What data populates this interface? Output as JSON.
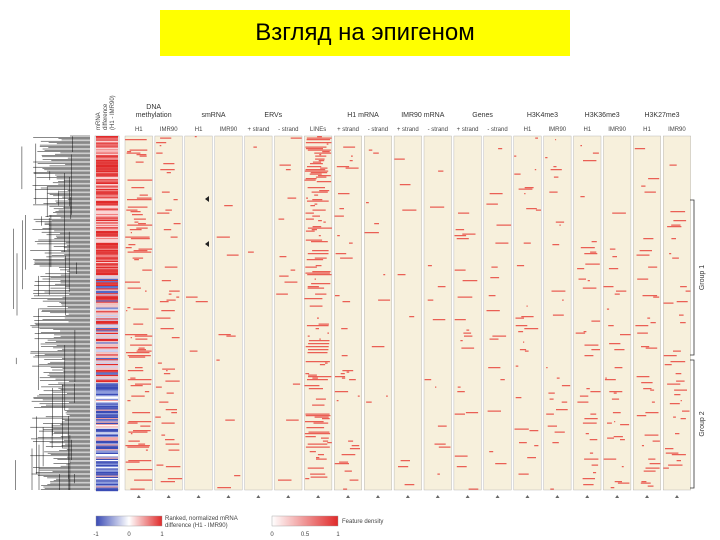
{
  "title": "Взгляд на эпигеном",
  "mrna_diff_label": "mRNA\ndifference\n(H1 - IMR90)",
  "track_groups": [
    {
      "label": "DNA\nmethylation",
      "subs": [
        "H1",
        "IMR90"
      ]
    },
    {
      "label": "smRNA",
      "subs": [
        "H1",
        "IMR90"
      ]
    },
    {
      "label": "ERVs",
      "subs": [
        "+ strand",
        "- strand"
      ]
    },
    {
      "label": "",
      "subs": [
        "LINEs"
      ]
    },
    {
      "label": "H1 mRNA",
      "subs": [
        "+ strand",
        "- strand"
      ]
    },
    {
      "label": "IMR90 mRNA",
      "subs": [
        "+ strand",
        "- strand"
      ]
    },
    {
      "label": "Genes",
      "subs": [
        "+ strand",
        "- strand"
      ]
    },
    {
      "label": "H3K4me3",
      "subs": [
        "H1",
        "IMR90"
      ]
    },
    {
      "label": "H3K36me3",
      "subs": [
        "H1",
        "IMR90"
      ]
    },
    {
      "label": "H3K27me3",
      "subs": [
        "H1",
        "IMR90"
      ]
    }
  ],
  "group_labels": [
    "Group 1",
    "Group 2"
  ],
  "legend": {
    "mrna_label": "Ranked, normalized mRNA\ndifference (H1 - IMR90)",
    "mrna_ticks": [
      "-1",
      "0",
      "1"
    ],
    "density_label": "Feature density",
    "density_ticks": [
      "0",
      "0.5",
      "1"
    ]
  },
  "colors": {
    "title_bg": "#ffff00",
    "track_bg": "#f7f0dc",
    "feature": "#e8453c",
    "low": "#3a4bb5"
  },
  "column_densities": [
    0.35,
    0.2,
    0.02,
    0.03,
    0.02,
    0.05,
    0.55,
    0.12,
    0.03,
    0.04,
    0.03,
    0.08,
    0.06,
    0.12,
    0.1,
    0.15,
    0.1,
    0.12,
    0.12
  ]
}
